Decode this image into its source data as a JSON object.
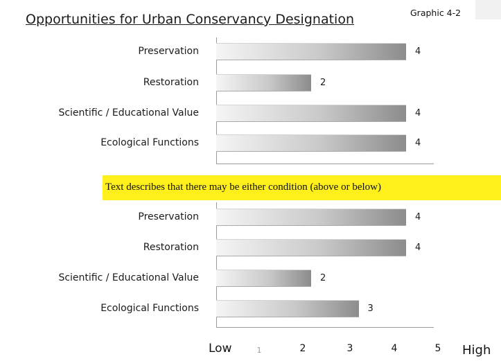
{
  "header": {
    "title": "Opportunities for Urban Conservancy Designation",
    "graphic_id": "Graphic 4-2"
  },
  "banner": {
    "text": "Text describes that there may be either condition (above or below)",
    "color": "#ffef1a"
  },
  "chart_data": [
    {
      "type": "bar",
      "orientation": "horizontal",
      "categories": [
        "Preservation",
        "Restoration",
        "Scientific / Educational Value",
        "Ecological Functions"
      ],
      "values": [
        4,
        2,
        4,
        4
      ],
      "xlim": [
        0,
        5
      ]
    },
    {
      "type": "bar",
      "orientation": "horizontal",
      "categories": [
        "Preservation",
        "Restoration",
        "Scientific / Educational Value",
        "Ecological Functions"
      ],
      "values": [
        4,
        4,
        2,
        3
      ],
      "xlim": [
        0,
        5
      ]
    }
  ],
  "axis": {
    "low_label": "Low",
    "high_label": "High",
    "ticks": [
      "1",
      "2",
      "3",
      "4",
      "5"
    ]
  }
}
